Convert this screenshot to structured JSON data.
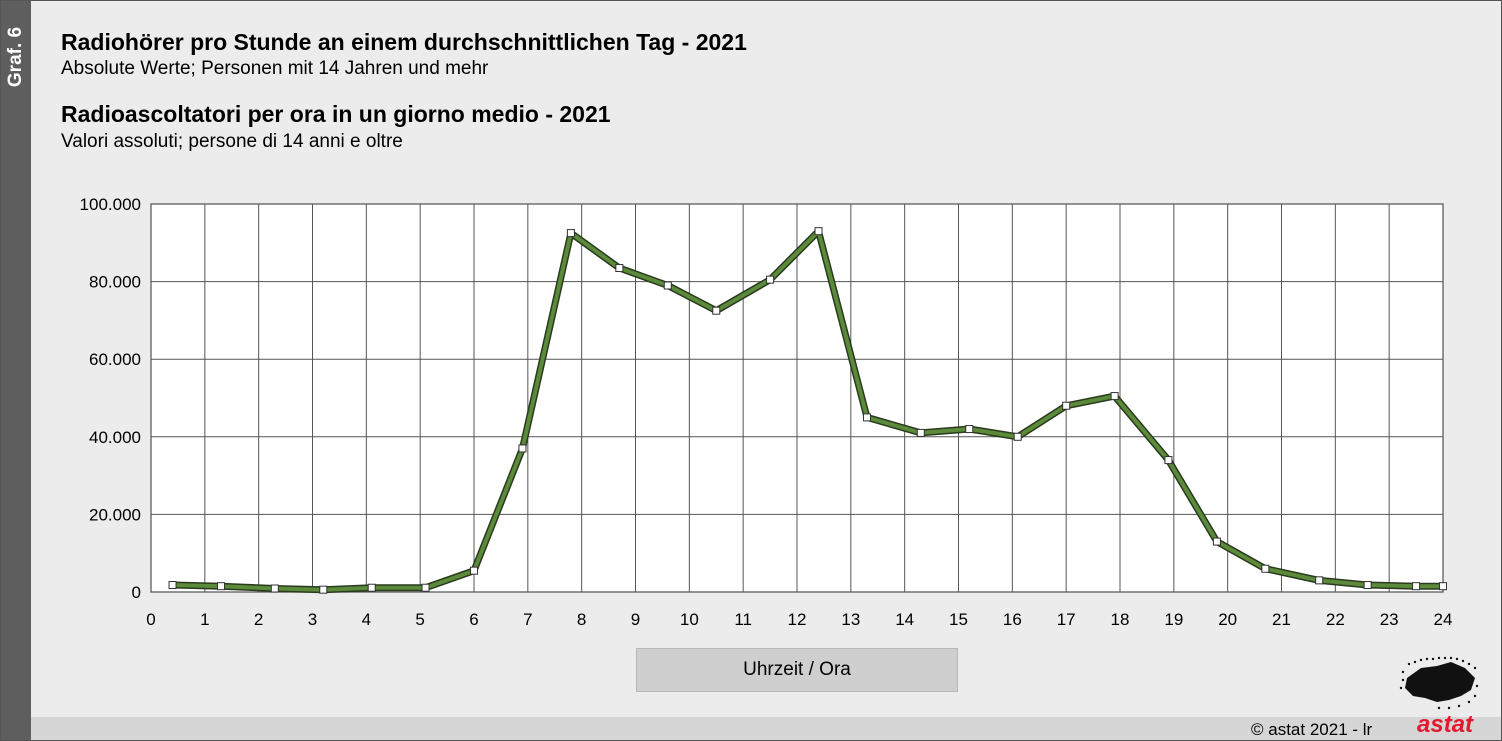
{
  "side_label": "Graf. 6",
  "header": {
    "title_de": "Radiohörer pro Stunde an einem durchschnittlichen Tag - 2021",
    "subtitle_de": "Absolute Werte; Personen mit 14 Jahren und mehr",
    "title_it": "Radioascoltatori per ora in un giorno medio - 2021",
    "subtitle_it": "Valori assoluti; persone di 14 anni e oltre"
  },
  "footer": {
    "copyright": "© astat 2021 - lr",
    "logo_text": "astat"
  },
  "colors": {
    "line_outer": "#2a3a1e",
    "line_inner": "#5a8a3a",
    "marker": "#ffffff",
    "grid": "#555555"
  },
  "chart_data": {
    "type": "line",
    "xlabel": "Uhrzeit / Ora",
    "xlim": [
      0,
      24
    ],
    "ylim": [
      0,
      100000
    ],
    "x_ticks": [
      "0",
      "1",
      "2",
      "3",
      "4",
      "5",
      "6",
      "7",
      "8",
      "9",
      "10",
      "11",
      "12",
      "13",
      "14",
      "15",
      "16",
      "17",
      "18",
      "19",
      "20",
      "21",
      "22",
      "23",
      "24"
    ],
    "y_ticks": [
      {
        "value": 0,
        "label": "0"
      },
      {
        "value": 20000,
        "label": "20.000"
      },
      {
        "value": 40000,
        "label": "40.000"
      },
      {
        "value": 60000,
        "label": "60.000"
      },
      {
        "value": 80000,
        "label": "80.000"
      },
      {
        "value": 100000,
        "label": "100.000"
      }
    ],
    "grid": true,
    "series": [
      {
        "x": [
          0.4,
          1.3,
          2.3,
          3.2,
          4.1,
          5.1,
          6.0,
          6.9,
          7.8,
          8.7,
          9.6,
          10.5,
          11.5,
          12.4,
          13.3,
          14.3,
          15.2,
          16.1,
          17.0,
          17.9,
          18.9,
          19.8,
          20.7,
          21.7,
          22.6,
          23.5,
          24.0
        ],
        "values": [
          1800,
          1500,
          900,
          600,
          1100,
          1100,
          5500,
          37000,
          92500,
          83500,
          79000,
          72500,
          80500,
          93000,
          45000,
          41000,
          42000,
          40000,
          48000,
          50500,
          34000,
          13000,
          6000,
          3000,
          1800,
          1500,
          1500
        ]
      }
    ]
  }
}
